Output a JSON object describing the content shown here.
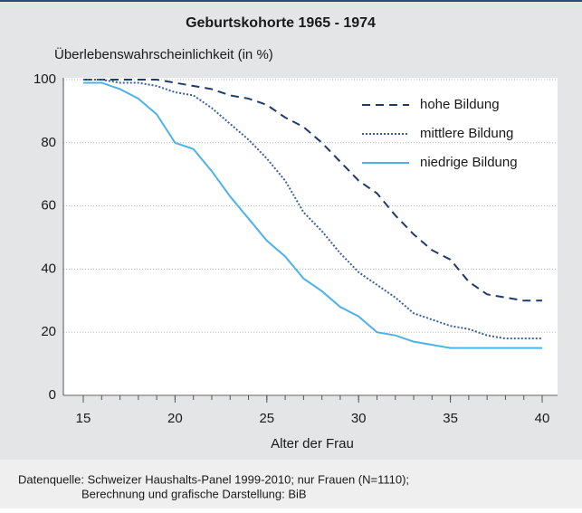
{
  "chart_data": {
    "type": "line",
    "title": "Geburtskohorte 1965 - 1974",
    "y_label": "Überlebenswahrscheinlichkeit (in %)",
    "x_label": "Alter der Frau",
    "source": [
      "Datenquelle: Schweizer Haushalts-Panel 1999-2010; nur Frauen (N=1110);",
      "Berechnung und grafische Darstellung: BiB"
    ],
    "x": [
      15,
      16,
      17,
      18,
      19,
      20,
      21,
      22,
      23,
      24,
      25,
      26,
      27,
      28,
      29,
      30,
      31,
      32,
      33,
      34,
      35,
      36,
      37,
      38,
      39,
      40
    ],
    "series": [
      {
        "name": "hohe Bildung",
        "color": "#1f3a6e",
        "style": "dashed",
        "values": [
          100,
          100,
          100,
          100,
          100,
          99,
          98,
          97,
          95,
          94,
          92,
          88,
          85,
          80,
          74,
          68,
          64,
          57,
          51,
          46,
          43,
          36,
          32,
          31,
          30,
          30
        ]
      },
      {
        "name": "mittlere Bildung",
        "color": "#3a5fa0",
        "style": "dotted",
        "values": [
          100,
          100,
          99,
          99,
          98,
          96,
          95,
          91,
          86,
          81,
          75,
          68,
          58,
          52,
          45,
          39,
          35,
          31,
          26,
          24,
          22,
          21,
          19,
          18,
          18,
          18
        ]
      },
      {
        "name": "niedrige Bildung",
        "color": "#4db3e6",
        "style": "solid",
        "values": [
          99,
          99,
          97,
          94,
          89,
          80,
          78,
          71,
          63,
          56,
          49,
          44,
          37,
          33,
          28,
          25,
          20,
          19,
          17,
          16,
          15,
          15,
          15,
          15,
          15,
          15
        ]
      }
    ],
    "xlim": [
      15,
      40
    ],
    "xticks": [
      15,
      20,
      25,
      30,
      35,
      40
    ],
    "ylim": [
      0,
      100
    ],
    "yticks": [
      0,
      20,
      40,
      60,
      80,
      100
    ],
    "grid": true,
    "legend": "upper right"
  }
}
